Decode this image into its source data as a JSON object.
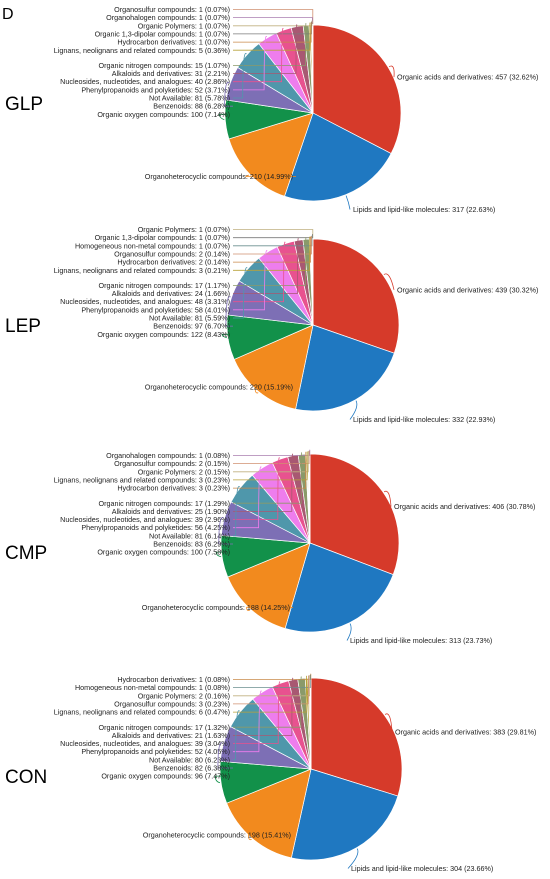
{
  "panel_label": "D",
  "colors": {
    "Organic acids and derivatives": "#d63a2a",
    "Lipids and lipid-like molecules": "#1f78c1",
    "Organoheterocyclic compounds": "#f28a1e",
    "Organic oxygen compounds": "#12914a",
    "Benzenoids": "#7d6fb5",
    "Not Available": "#4f97ab",
    "Phenylpropanoids and polyketides": "#ee7ded",
    "Nucleosides, nucleotides, and analogues": "#e8528f",
    "Alkaloids and derivatives": "#a85872",
    "Organic nitrogen compounds": "#8a9a6a",
    "Lignans, neolignans and related compounds": "#b8a23a",
    "Hydrocarbon derivatives": "#c98a4a",
    "Organic 1,3-dipolar compounds": "#7a7a7a",
    "Organic Polymers": "#c0b080",
    "Organohalogen compounds": "#aa7fb0",
    "Organosulfur compounds": "#d09070",
    "Homogeneous non-metal compounds": "#6b8f8f"
  },
  "chart_data": [
    {
      "type": "pie",
      "title": "GLP",
      "labels": [
        "Organic acids and derivatives: 457 (32.62%)",
        "Lipids and lipid-like molecules: 317 (22.63%)",
        "Organoheterocyclic compounds: 210 (14.99%)",
        "Organic oxygen compounds: 100 (7.14%)",
        "Benzenoids: 88 (6.28%)",
        "Not Available: 81 (5.78%)",
        "Phenylpropanoids and polyketides: 52 (3.71%)",
        "Nucleosides, nucleotides, and analogues: 40 (2.86%)",
        "Alkaloids and derivatives: 31 (2.21%)",
        "Organic nitrogen compounds: 15 (1.07%)",
        "Lignans, neolignans and related compounds: 5 (0.36%)",
        "Hydrocarbon derivatives: 1 (0.07%)",
        "Organic 1,3-dipolar compounds: 1 (0.07%)",
        "Organic Polymers: 1 (0.07%)",
        "Organohalogen compounds: 1 (0.07%)",
        "Organosulfur compounds: 1 (0.07%)"
      ],
      "categories": [
        "Organic acids and derivatives",
        "Lipids and lipid-like molecules",
        "Organoheterocyclic compounds",
        "Organic oxygen compounds",
        "Benzenoids",
        "Not Available",
        "Phenylpropanoids and polyketides",
        "Nucleosides, nucleotides, and analogues",
        "Alkaloids and derivatives",
        "Organic nitrogen compounds",
        "Lignans, neolignans and related compounds",
        "Hydrocarbon derivatives",
        "Organic 1,3-dipolar compounds",
        "Organic Polymers",
        "Organohalogen compounds",
        "Organosulfur compounds"
      ],
      "values": [
        457,
        317,
        210,
        100,
        88,
        81,
        52,
        40,
        31,
        15,
        5,
        1,
        1,
        1,
        1,
        1
      ],
      "percentages": [
        32.62,
        22.63,
        14.99,
        7.14,
        6.28,
        5.78,
        3.71,
        2.86,
        2.21,
        1.07,
        0.36,
        0.07,
        0.07,
        0.07,
        0.07,
        0.07
      ]
    },
    {
      "type": "pie",
      "title": "LEP",
      "labels": [
        "Organic acids and derivatives: 439 (30.32%)",
        "Lipids and lipid-like molecules: 332 (22.93%)",
        "Organoheterocyclic compounds: 220 (15.19%)",
        "Organic oxygen compounds: 122 (8.43%)",
        "Benzenoids: 97 (6.70%)",
        "Not Available: 81 (5.59%)",
        "Phenylpropanoids and polyketides: 58 (4.01%)",
        "Nucleosides, nucleotides, and analogues: 48 (3.31%)",
        "Alkaloids and derivatives: 24 (1.66%)",
        "Organic nitrogen compounds: 17 (1.17%)",
        "Lignans, neolignans and related compounds: 3 (0.21%)",
        "Hydrocarbon derivatives: 2 (0.14%)",
        "Organosulfur compounds: 2 (0.14%)",
        "Homogeneous non-metal compounds: 1 (0.07%)",
        "Organic 1,3-dipolar compounds: 1 (0.07%)",
        "Organic Polymers: 1 (0.07%)"
      ],
      "categories": [
        "Organic acids and derivatives",
        "Lipids and lipid-like molecules",
        "Organoheterocyclic compounds",
        "Organic oxygen compounds",
        "Benzenoids",
        "Not Available",
        "Phenylpropanoids and polyketides",
        "Nucleosides, nucleotides, and analogues",
        "Alkaloids and derivatives",
        "Organic nitrogen compounds",
        "Lignans, neolignans and related compounds",
        "Hydrocarbon derivatives",
        "Organosulfur compounds",
        "Homogeneous non-metal compounds",
        "Organic 1,3-dipolar compounds",
        "Organic Polymers"
      ],
      "values": [
        439,
        332,
        220,
        122,
        97,
        81,
        58,
        48,
        24,
        17,
        3,
        2,
        2,
        1,
        1,
        1
      ],
      "percentages": [
        30.32,
        22.93,
        15.19,
        8.43,
        6.7,
        5.59,
        4.01,
        3.31,
        1.66,
        1.17,
        0.21,
        0.14,
        0.14,
        0.07,
        0.07,
        0.07
      ]
    },
    {
      "type": "pie",
      "title": "CMP",
      "labels": [
        "Organic acids and derivatives: 406 (30.78%)",
        "Lipids and lipid-like molecules: 313 (23.73%)",
        "Organoheterocyclic compounds: 188 (14.25%)",
        "Organic oxygen compounds: 100 (7.58%)",
        "Benzenoids: 83 (6.29%)",
        "Not Available: 81 (6.14%)",
        "Phenylpropanoids and polyketides: 56 (4.25%)",
        "Nucleosides, nucleotides, and analogues: 39 (2.96%)",
        "Alkaloids and derivatives: 25 (1.90%)",
        "Organic nitrogen compounds: 17 (1.29%)",
        "Hydrocarbon derivatives: 3 (0.23%)",
        "Lignans, neolignans and related compounds: 3 (0.23%)",
        "Organic Polymers: 2 (0.15%)",
        "Organosulfur compounds: 2 (0.15%)",
        "Organohalogen compounds: 1 (0.08%)"
      ],
      "categories": [
        "Organic acids and derivatives",
        "Lipids and lipid-like molecules",
        "Organoheterocyclic compounds",
        "Organic oxygen compounds",
        "Benzenoids",
        "Not Available",
        "Phenylpropanoids and polyketides",
        "Nucleosides, nucleotides, and analogues",
        "Alkaloids and derivatives",
        "Organic nitrogen compounds",
        "Hydrocarbon derivatives",
        "Lignans, neolignans and related compounds",
        "Organic Polymers",
        "Organosulfur compounds",
        "Organohalogen compounds"
      ],
      "values": [
        406,
        313,
        188,
        100,
        83,
        81,
        56,
        39,
        25,
        17,
        3,
        3,
        2,
        2,
        1
      ],
      "percentages": [
        30.78,
        23.73,
        14.25,
        7.58,
        6.29,
        6.14,
        4.25,
        2.96,
        1.9,
        1.29,
        0.23,
        0.23,
        0.15,
        0.15,
        0.08
      ]
    },
    {
      "type": "pie",
      "title": "CON",
      "labels": [
        "Organic acids and derivatives: 383 (29.81%)",
        "Lipids and lipid-like molecules: 304 (23.66%)",
        "Organoheterocyclic compounds: 198 (15.41%)",
        "Organic oxygen compounds: 96 (7.47%)",
        "Benzenoids: 82 (6.38%)",
        "Not Available: 80 (6.23%)",
        "Phenylpropanoids and polyketides: 52 (4.05%)",
        "Nucleosides, nucleotides, and analogues: 39 (3.04%)",
        "Alkaloids and derivatives: 21 (1.63%)",
        "Organic nitrogen compounds: 17 (1.32%)",
        "Lignans, neolignans and related compounds: 6 (0.47%)",
        "Organosulfur compounds: 3 (0.23%)",
        "Organic Polymers: 2 (0.16%)",
        "Homogeneous non-metal compounds: 1 (0.08%)",
        "Hydrocarbon derivatives: 1 (0.08%)"
      ],
      "categories": [
        "Organic acids and derivatives",
        "Lipids and lipid-like molecules",
        "Organoheterocyclic compounds",
        "Organic oxygen compounds",
        "Benzenoids",
        "Not Available",
        "Phenylpropanoids and polyketides",
        "Nucleosides, nucleotides, and analogues",
        "Alkaloids and derivatives",
        "Organic nitrogen compounds",
        "Lignans, neolignans and related compounds",
        "Organosulfur compounds",
        "Organic Polymers",
        "Homogeneous non-metal compounds",
        "Hydrocarbon derivatives"
      ],
      "values": [
        383,
        304,
        198,
        96,
        82,
        80,
        52,
        39,
        21,
        17,
        6,
        3,
        2,
        1,
        1
      ],
      "percentages": [
        29.81,
        23.66,
        15.41,
        7.47,
        6.38,
        6.23,
        4.05,
        3.04,
        1.63,
        1.32,
        0.47,
        0.23,
        0.16,
        0.08,
        0.08
      ]
    }
  ]
}
